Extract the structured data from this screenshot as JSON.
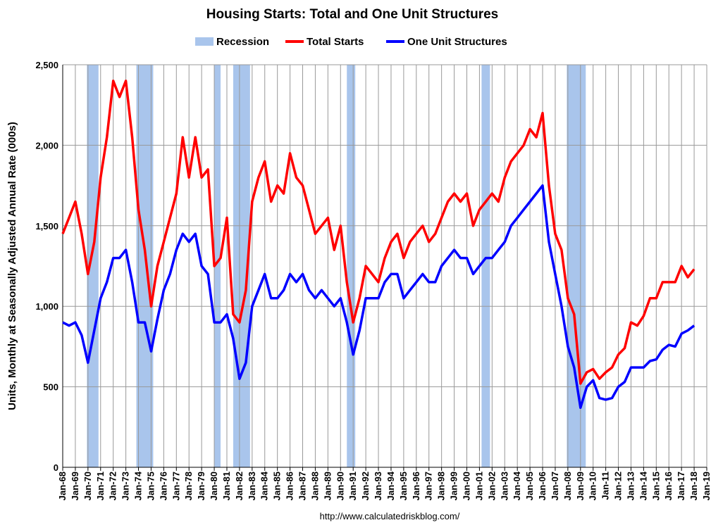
{
  "chart_data": {
    "type": "line",
    "title": "Housing Starts: Total and One Unit Structures",
    "y_label": "Units, Monthly at Seasonally Adjusted Annual Rate (000s)",
    "source": "http://www.calculatedriskblog.com/",
    "grid": true,
    "ylim": [
      0,
      2500
    ],
    "yticks": [
      0,
      500,
      {
        "value": 1000,
        "label": "1,000"
      },
      {
        "value": 1500,
        "label": "1,500"
      },
      {
        "value": 2000,
        "label": "2,000"
      },
      {
        "value": 2500,
        "label": "2,500"
      }
    ],
    "xticks": [
      "Jan-68",
      "Jan-69",
      "Jan-70",
      "Jan-71",
      "Jan-72",
      "Jan-73",
      "Jan-74",
      "Jan-75",
      "Jan-76",
      "Jan-77",
      "Jan-78",
      "Jan-79",
      "Jan-80",
      "Jan-81",
      "Jan-82",
      "Jan-83",
      "Jan-84",
      "Jan-85",
      "Jan-86",
      "Jan-87",
      "Jan-88",
      "Jan-89",
      "Jan-90",
      "Jan-91",
      "Jan-92",
      "Jan-93",
      "Jan-94",
      "Jan-95",
      "Jan-96",
      "Jan-97",
      "Jan-98",
      "Jan-99",
      "Jan-00",
      "Jan-01",
      "Jan-02",
      "Jan-03",
      "Jan-04",
      "Jan-05",
      "Jan-06",
      "Jan-07",
      "Jan-08",
      "Jan-09",
      "Jan-10",
      "Jan-11",
      "Jan-12",
      "Jan-13",
      "Jan-14",
      "Jan-15",
      "Jan-16",
      "Jan-17",
      "Jan-18",
      "Jan-19"
    ],
    "recessions": {
      "name": "Recession",
      "color": "#a9c5ec",
      "periods": [
        [
          "Dec-69",
          "Nov-70"
        ],
        [
          "Nov-73",
          "Mar-75"
        ],
        [
          "Jan-80",
          "Jul-80"
        ],
        [
          "Jul-81",
          "Nov-82"
        ],
        [
          "Jul-90",
          "Mar-91"
        ],
        [
          "Mar-01",
          "Nov-01"
        ],
        [
          "Dec-07",
          "Jun-09"
        ]
      ]
    },
    "x": [
      "Jan-68",
      "Jul-68",
      "Jan-69",
      "Jul-69",
      "Jan-70",
      "Jul-70",
      "Jan-71",
      "Jul-71",
      "Jan-72",
      "Jul-72",
      "Jan-73",
      "Jul-73",
      "Jan-74",
      "Jul-74",
      "Jan-75",
      "Jul-75",
      "Jan-76",
      "Jul-76",
      "Jan-77",
      "Jul-77",
      "Jan-78",
      "Jul-78",
      "Jan-79",
      "Jul-79",
      "Jan-80",
      "Jul-80",
      "Jan-81",
      "Jul-81",
      "Jan-82",
      "Jul-82",
      "Jan-83",
      "Jul-83",
      "Jan-84",
      "Jul-84",
      "Jan-85",
      "Jul-85",
      "Jan-86",
      "Jul-86",
      "Jan-87",
      "Jul-87",
      "Jan-88",
      "Jul-88",
      "Jan-89",
      "Jul-89",
      "Jan-90",
      "Jul-90",
      "Jan-91",
      "Jul-91",
      "Jan-92",
      "Jul-92",
      "Jan-93",
      "Jul-93",
      "Jan-94",
      "Jul-94",
      "Jan-95",
      "Jul-95",
      "Jan-96",
      "Jul-96",
      "Jan-97",
      "Jul-97",
      "Jan-98",
      "Jul-98",
      "Jan-99",
      "Jul-99",
      "Jan-00",
      "Jul-00",
      "Jan-01",
      "Jul-01",
      "Jan-02",
      "Jul-02",
      "Jan-03",
      "Jul-03",
      "Jan-04",
      "Jul-04",
      "Jan-05",
      "Jul-05",
      "Jan-06",
      "Jul-06",
      "Jan-07",
      "Jul-07",
      "Jan-08",
      "Jul-08",
      "Jan-09",
      "Jul-09",
      "Jan-10",
      "Jul-10",
      "Jan-11",
      "Jul-11",
      "Jan-12",
      "Jul-12",
      "Jan-13",
      "Jul-13",
      "Jan-14",
      "Jul-14",
      "Jan-15",
      "Jul-15",
      "Jan-16",
      "Jul-16",
      "Jan-17",
      "Jul-17",
      "Jan-18"
    ],
    "series": [
      {
        "name": "Total Starts",
        "color": "#ff0000",
        "values": [
          1450,
          1550,
          1650,
          1450,
          1200,
          1400,
          1800,
          2050,
          2400,
          2300,
          2400,
          2050,
          1600,
          1350,
          1000,
          1250,
          1400,
          1550,
          1700,
          2050,
          1800,
          2050,
          1800,
          1850,
          1250,
          1300,
          1550,
          950,
          900,
          1100,
          1650,
          1800,
          1900,
          1650,
          1750,
          1700,
          1950,
          1800,
          1750,
          1600,
          1450,
          1500,
          1550,
          1350,
          1500,
          1150,
          900,
          1050,
          1250,
          1200,
          1150,
          1300,
          1400,
          1450,
          1300,
          1400,
          1450,
          1500,
          1400,
          1450,
          1550,
          1650,
          1700,
          1650,
          1700,
          1500,
          1600,
          1650,
          1700,
          1650,
          1800,
          1900,
          1950,
          2000,
          2100,
          2050,
          2200,
          1750,
          1450,
          1350,
          1050,
          950,
          520,
          590,
          610,
          550,
          590,
          620,
          700,
          740,
          900,
          880,
          940,
          1050,
          1050,
          1150,
          1150,
          1150,
          1250,
          1180,
          1230
        ]
      },
      {
        "name": "One Unit Structures",
        "color": "#0000ff",
        "values": [
          900,
          880,
          900,
          820,
          650,
          850,
          1050,
          1150,
          1300,
          1300,
          1350,
          1150,
          900,
          900,
          720,
          920,
          1100,
          1200,
          1350,
          1450,
          1400,
          1450,
          1250,
          1200,
          900,
          900,
          950,
          800,
          550,
          650,
          1000,
          1100,
          1200,
          1050,
          1050,
          1100,
          1200,
          1150,
          1200,
          1100,
          1050,
          1100,
          1050,
          1000,
          1050,
          900,
          700,
          850,
          1050,
          1050,
          1050,
          1150,
          1200,
          1200,
          1050,
          1100,
          1150,
          1200,
          1150,
          1150,
          1250,
          1300,
          1350,
          1300,
          1300,
          1200,
          1250,
          1300,
          1300,
          1350,
          1400,
          1500,
          1550,
          1600,
          1650,
          1700,
          1750,
          1400,
          1200,
          1000,
          750,
          620,
          370,
          500,
          540,
          430,
          420,
          430,
          500,
          530,
          620,
          620,
          620,
          660,
          670,
          730,
          760,
          750,
          830,
          850,
          880
        ]
      }
    ]
  }
}
